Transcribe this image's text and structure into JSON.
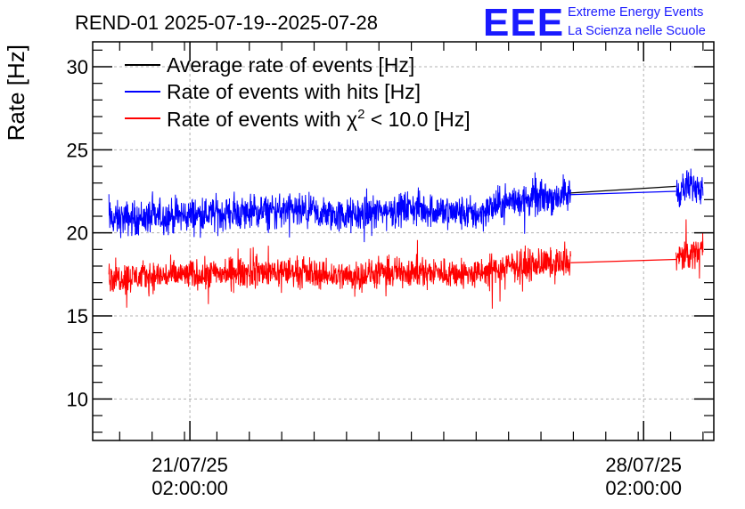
{
  "logo": {
    "mark": "EEE",
    "line1": "Extreme Energy Events",
    "line2": "La Scienza nelle Scuole"
  },
  "colors": {
    "average": "#000000",
    "hits": "#0000ff",
    "chi2": "#ff0000",
    "grid": "#b0b0b0",
    "logo": "#1a1aff"
  },
  "chart_data": {
    "type": "line",
    "title": "REND-01 2025-07-19--2025-07-28",
    "ylabel": "Rate [Hz]",
    "xlabel": "",
    "ylim": [
      7.5,
      31.5
    ],
    "xlim": [
      "2025-07-19 14:00",
      "2025-07-29 04:00"
    ],
    "grid": true,
    "legend_position": "top-left",
    "yticks": [
      10,
      15,
      20,
      25,
      30
    ],
    "xticks": [
      {
        "date": "2025-07-21 02:00",
        "label_line1": "21/07/25",
        "label_line2": "02:00:00"
      },
      {
        "date": "2025-07-28 02:00",
        "label_line1": "28/07/25",
        "label_line2": "02:00:00"
      }
    ],
    "segments": [
      {
        "start": "2025-07-19 20:00",
        "end": "2025-07-26 23:00"
      },
      {
        "start": "2025-07-28 14:00",
        "end": "2025-07-29 00:00"
      }
    ],
    "series": [
      {
        "name": "Average rate of events [Hz]",
        "color": "#000000",
        "x": [
          "2025-07-26 23:00",
          "2025-07-28 14:00"
        ],
        "y": [
          22.4,
          22.8
        ]
      },
      {
        "name": "Rate of events with hits [Hz]",
        "color": "#0000ff",
        "trend": [
          {
            "x": "2025-07-19 20:00",
            "y": 20.8
          },
          {
            "x": "2025-07-21 06:00",
            "y": 21.1
          },
          {
            "x": "2025-07-22 12:00",
            "y": 21.3
          },
          {
            "x": "2025-07-23 12:00",
            "y": 21.0
          },
          {
            "x": "2025-07-24 12:00",
            "y": 21.5
          },
          {
            "x": "2025-07-25 12:00",
            "y": 21.1
          },
          {
            "x": "2025-07-26 00:00",
            "y": 21.9
          },
          {
            "x": "2025-07-26 23:00",
            "y": 22.3
          },
          {
            "x": "2025-07-28 14:00",
            "y": 22.5
          },
          {
            "x": "2025-07-29 00:00",
            "y": 23.0
          }
        ],
        "noise_amplitude": 1.1
      },
      {
        "name": "Rate of events with χ² < 10.0 [Hz]",
        "label_prefix": "Rate of events with χ",
        "label_sup": "2",
        "label_suffix": " < 10.0 [Hz]",
        "color": "#ff0000",
        "trend": [
          {
            "x": "2025-07-19 20:00",
            "y": 17.3
          },
          {
            "x": "2025-07-21 06:00",
            "y": 17.5
          },
          {
            "x": "2025-07-22 12:00",
            "y": 17.7
          },
          {
            "x": "2025-07-23 12:00",
            "y": 17.4
          },
          {
            "x": "2025-07-24 12:00",
            "y": 17.7
          },
          {
            "x": "2025-07-25 12:00",
            "y": 17.5
          },
          {
            "x": "2025-07-26 00:00",
            "y": 18.0
          },
          {
            "x": "2025-07-26 23:00",
            "y": 18.2
          },
          {
            "x": "2025-07-28 14:00",
            "y": 18.4
          },
          {
            "x": "2025-07-29 00:00",
            "y": 19.0
          }
        ],
        "noise_amplitude": 0.95
      }
    ]
  }
}
